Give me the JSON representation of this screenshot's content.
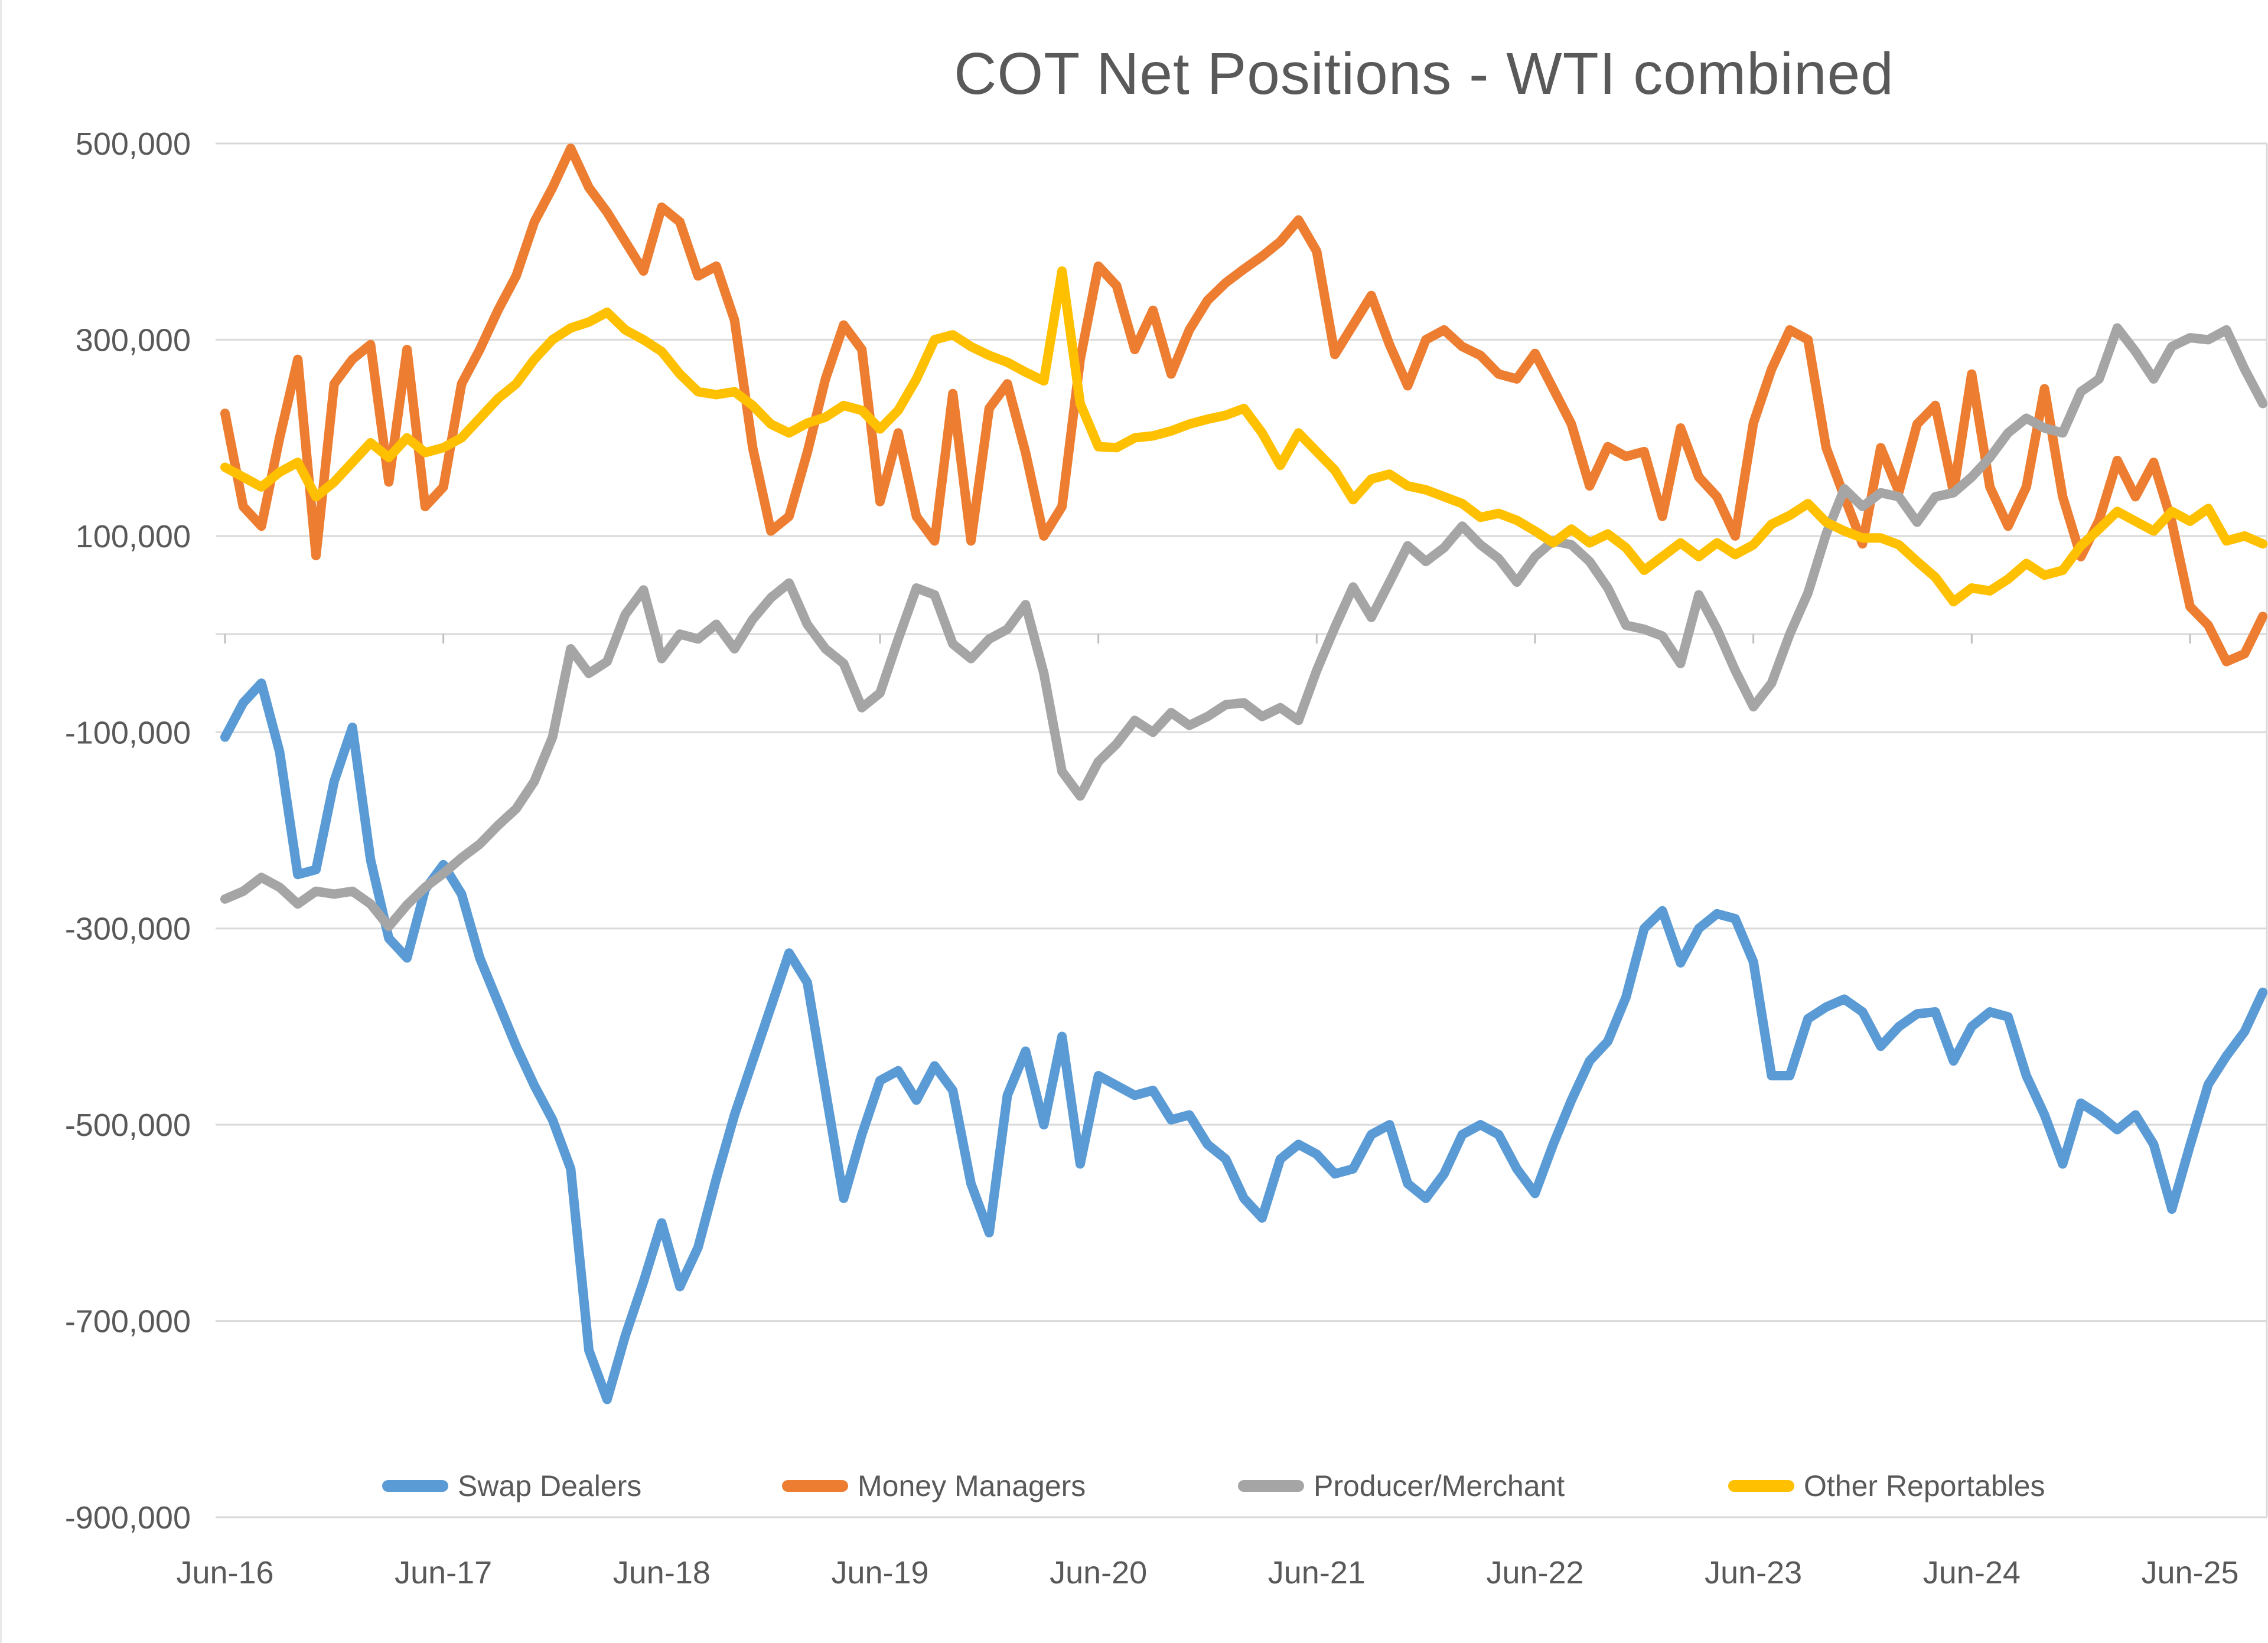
{
  "title": "COT Net Positions - WTI combined",
  "text_color": "#595959",
  "gridline_color": "#d9d9d9",
  "background_color": "#ffffff",
  "chart_data": {
    "type": "line",
    "title": "COT Net Positions - WTI combined",
    "xlabel": "",
    "ylabel": "",
    "grid": true,
    "legend_position": "bottom-inside",
    "ylim": [
      -900000,
      500000
    ],
    "y_tick_step": 200000,
    "y_ticks": [
      {
        "value": 500000,
        "label": "500,000"
      },
      {
        "value": 300000,
        "label": "300,000"
      },
      {
        "value": 100000,
        "label": "100,000"
      },
      {
        "value": -100000,
        "label": "-100,000"
      },
      {
        "value": -300000,
        "label": "-300,000"
      },
      {
        "value": -500000,
        "label": "-500,000"
      },
      {
        "value": -700000,
        "label": "-700,000"
      },
      {
        "value": -900000,
        "label": "-900,000"
      }
    ],
    "x_ticks": [
      {
        "index": 0,
        "label": "Jun-16"
      },
      {
        "index": 12,
        "label": "Jun-17"
      },
      {
        "index": 24,
        "label": "Jun-18"
      },
      {
        "index": 36,
        "label": "Jun-19"
      },
      {
        "index": 48,
        "label": "Jun-20"
      },
      {
        "index": 60,
        "label": "Jun-21"
      },
      {
        "index": 72,
        "label": "Jun-22"
      },
      {
        "index": 84,
        "label": "Jun-23"
      },
      {
        "index": 96,
        "label": "Jun-24"
      },
      {
        "index": 108,
        "label": "Jun-25"
      }
    ],
    "x": [
      "2016-06",
      "2016-07",
      "2016-08",
      "2016-09",
      "2016-10",
      "2016-11",
      "2016-12",
      "2017-01",
      "2017-02",
      "2017-03",
      "2017-04",
      "2017-05",
      "2017-06",
      "2017-07",
      "2017-08",
      "2017-09",
      "2017-10",
      "2017-11",
      "2017-12",
      "2018-01",
      "2018-02",
      "2018-03",
      "2018-04",
      "2018-05",
      "2018-06",
      "2018-07",
      "2018-08",
      "2018-09",
      "2018-10",
      "2018-11",
      "2018-12",
      "2019-01",
      "2019-02",
      "2019-03",
      "2019-04",
      "2019-05",
      "2019-06",
      "2019-07",
      "2019-08",
      "2019-09",
      "2019-10",
      "2019-11",
      "2019-12",
      "2020-01",
      "2020-02",
      "2020-03",
      "2020-04",
      "2020-05",
      "2020-06",
      "2020-07",
      "2020-08",
      "2020-09",
      "2020-10",
      "2020-11",
      "2020-12",
      "2021-01",
      "2021-02",
      "2021-03",
      "2021-04",
      "2021-05",
      "2021-06",
      "2021-07",
      "2021-08",
      "2021-09",
      "2021-10",
      "2021-11",
      "2021-12",
      "2022-01",
      "2022-02",
      "2022-03",
      "2022-04",
      "2022-05",
      "2022-06",
      "2022-07",
      "2022-08",
      "2022-09",
      "2022-10",
      "2022-11",
      "2022-12",
      "2023-01",
      "2023-02",
      "2023-03",
      "2023-04",
      "2023-05",
      "2023-06",
      "2023-07",
      "2023-08",
      "2023-09",
      "2023-10",
      "2023-11",
      "2023-12",
      "2024-01",
      "2024-02",
      "2024-03",
      "2024-04",
      "2024-05",
      "2024-06",
      "2024-07",
      "2024-08",
      "2024-09",
      "2024-10",
      "2024-11",
      "2024-12",
      "2025-01",
      "2025-02",
      "2025-03",
      "2025-04",
      "2025-05",
      "2025-06",
      "2025-07",
      "2025-08",
      "2025-09",
      "2025-10"
    ],
    "series": [
      {
        "name": "Swap Dealers",
        "color": "#5b9bd5",
        "values": [
          -105000,
          -70000,
          -50000,
          -120000,
          -245000,
          -240000,
          -150000,
          -95000,
          -230000,
          -310000,
          -330000,
          -260000,
          -235000,
          -265000,
          -330000,
          -375000,
          -420000,
          -460000,
          -495000,
          -545000,
          -730000,
          -780000,
          -715000,
          -660000,
          -600000,
          -665000,
          -625000,
          -555000,
          -490000,
          -435000,
          -380000,
          -325000,
          -355000,
          -465000,
          -575000,
          -510000,
          -455000,
          -445000,
          -475000,
          -440000,
          -465000,
          -560000,
          -610000,
          -470000,
          -425000,
          -500000,
          -410000,
          -540000,
          -450000,
          -460000,
          -470000,
          -465000,
          -495000,
          -490000,
          -520000,
          -535000,
          -575000,
          -595000,
          -535000,
          -520000,
          -530000,
          -550000,
          -545000,
          -510000,
          -500000,
          -560000,
          -575000,
          -550000,
          -510000,
          -500000,
          -510000,
          -545000,
          -570000,
          -520000,
          -475000,
          -435000,
          -415000,
          -370000,
          -300000,
          -282000,
          -335000,
          -300000,
          -285000,
          -290000,
          -334000,
          -450000,
          -450000,
          -392000,
          -380000,
          -372000,
          -385000,
          -420000,
          -400000,
          -387000,
          -385000,
          -435000,
          -400000,
          -385000,
          -390000,
          -450000,
          -490000,
          -540000,
          -478000,
          -490000,
          -505000,
          -490000,
          -520000,
          -586000,
          -521000,
          -459000,
          -430000,
          -405000,
          -365000
        ]
      },
      {
        "name": "Money Managers",
        "color": "#ed7d31",
        "values": [
          225000,
          130000,
          110000,
          200000,
          280000,
          80000,
          255000,
          280000,
          295000,
          155000,
          290000,
          130000,
          150000,
          255000,
          290000,
          330000,
          365000,
          420000,
          455000,
          495000,
          455000,
          430000,
          400000,
          370000,
          435000,
          420000,
          365000,
          375000,
          320000,
          190000,
          105000,
          120000,
          185000,
          260000,
          315000,
          290000,
          135000,
          205000,
          120000,
          95000,
          245000,
          95000,
          230000,
          255000,
          185000,
          100000,
          130000,
          280000,
          375000,
          355000,
          290000,
          330000,
          265000,
          310000,
          340000,
          358000,
          372000,
          385000,
          400000,
          422000,
          390000,
          285000,
          315000,
          345000,
          295000,
          253000,
          300000,
          310000,
          293000,
          284000,
          265000,
          260000,
          286000,
          250000,
          214000,
          151000,
          191000,
          181000,
          186000,
          120000,
          210000,
          160000,
          140000,
          100000,
          215000,
          270000,
          310000,
          300000,
          190000,
          140000,
          92000,
          190000,
          145000,
          214000,
          233000,
          145000,
          265000,
          150000,
          110000,
          150000,
          250000,
          140000,
          79000,
          116000,
          177000,
          140000,
          175000,
          114000,
          28000,
          9000,
          -28000,
          -20000,
          18000
        ]
      },
      {
        "name": "Producer/Merchant",
        "color": "#a5a5a5",
        "values": [
          -270000,
          -262000,
          -248000,
          -258000,
          -275000,
          -262000,
          -265000,
          -262000,
          -275000,
          -298000,
          -276000,
          -258000,
          -244000,
          -228000,
          -214000,
          -195000,
          -178000,
          -150000,
          -105000,
          -15000,
          -40000,
          -28000,
          20000,
          45000,
          -25000,
          0,
          -5000,
          10000,
          -15000,
          15000,
          37000,
          52000,
          10000,
          -15000,
          -30000,
          -75000,
          -60000,
          -5000,
          47000,
          40000,
          -10000,
          -25000,
          -5000,
          5000,
          30000,
          -40000,
          -140000,
          -165000,
          -130000,
          -112000,
          -88000,
          -100000,
          -80000,
          -93000,
          -84000,
          -72000,
          -70000,
          -84000,
          -75000,
          -88000,
          -37000,
          7000,
          48000,
          17000,
          53000,
          90000,
          74000,
          88000,
          110000,
          91000,
          77000,
          53000,
          79000,
          95000,
          91000,
          74000,
          47000,
          9000,
          5000,
          -2000,
          -30000,
          40000,
          5000,
          -37000,
          -74000,
          -50000,
          0,
          42000,
          102000,
          148000,
          130000,
          144000,
          140000,
          114000,
          140000,
          144000,
          160000,
          180000,
          205000,
          220000,
          210000,
          205000,
          247000,
          260000,
          312000,
          288000,
          260000,
          293000,
          302000,
          300000,
          310000,
          270000,
          235000
        ]
      },
      {
        "name": "Other Reportables",
        "color": "#ffc000",
        "values": [
          170000,
          160000,
          150000,
          165000,
          175000,
          140000,
          155000,
          175000,
          195000,
          180000,
          200000,
          185000,
          190000,
          200000,
          220000,
          240000,
          255000,
          280000,
          300000,
          312000,
          318000,
          328000,
          310000,
          300000,
          288000,
          265000,
          247000,
          244000,
          247000,
          233000,
          214000,
          205000,
          215000,
          221000,
          233000,
          228000,
          209000,
          228000,
          260000,
          300000,
          305000,
          293000,
          284000,
          277000,
          267000,
          258000,
          370000,
          235000,
          191000,
          190000,
          200000,
          202000,
          207000,
          214000,
          219000,
          223000,
          230000,
          205000,
          172000,
          205000,
          186000,
          167000,
          137000,
          158000,
          163000,
          151000,
          147000,
          140000,
          133000,
          119000,
          123000,
          116000,
          105000,
          93000,
          107000,
          93000,
          102000,
          88000,
          65000,
          79000,
          93000,
          79000,
          93000,
          81000,
          91000,
          112000,
          121000,
          133000,
          114000,
          105000,
          98000,
          98000,
          91000,
          74000,
          58000,
          33000,
          47000,
          44000,
          56000,
          72000,
          60000,
          65000,
          90000,
          107000,
          125000,
          115000,
          105000,
          125000,
          115000,
          128000,
          95000,
          100000,
          92000
        ]
      }
    ]
  }
}
